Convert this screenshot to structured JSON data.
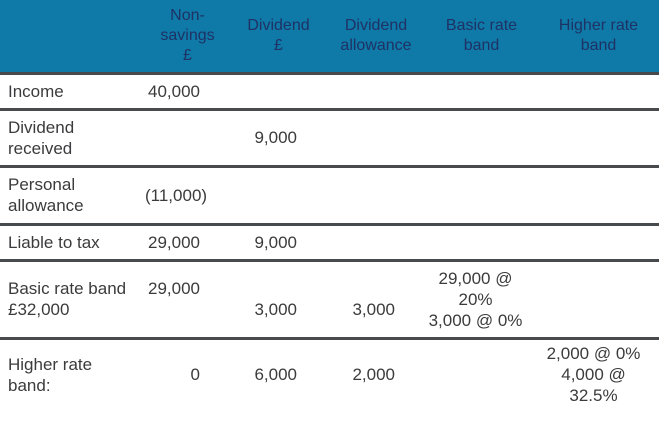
{
  "header": {
    "background_color": "#0F79A8",
    "text_color": "#1E3264",
    "columns": [
      {
        "id": "row_label",
        "lines": []
      },
      {
        "id": "non_savings",
        "lines": [
          "Non-",
          "savings",
          "£"
        ]
      },
      {
        "id": "dividend",
        "lines": [
          "Dividend",
          "£"
        ]
      },
      {
        "id": "dividend_allowance",
        "lines": [
          "Dividend",
          "allowance"
        ]
      },
      {
        "id": "basic_rate_band",
        "lines": [
          "Basic rate",
          "band"
        ]
      },
      {
        "id": "higher_rate_band",
        "lines": [
          "Higher rate",
          "band"
        ]
      }
    ]
  },
  "body": {
    "text_color": "#3B3B3D",
    "divider_color": "#474B4E",
    "rows": [
      {
        "id": "income",
        "cells": [
          [
            "Income"
          ],
          [
            "40,000"
          ],
          [],
          [],
          [],
          []
        ]
      },
      {
        "id": "dividend-received",
        "cells": [
          [
            "Dividend",
            "received"
          ],
          [],
          [
            "9,000"
          ],
          [],
          [],
          []
        ]
      },
      {
        "id": "personal-allowance",
        "cells": [
          [
            "Personal",
            "allowance"
          ],
          [
            "(11,000)"
          ],
          [],
          [],
          [],
          []
        ]
      },
      {
        "id": "liable-to-tax",
        "cells": [
          [
            "Liable to tax"
          ],
          [
            "29,000"
          ],
          [
            "9,000"
          ],
          [],
          [],
          []
        ]
      },
      {
        "id": "basic-rate-band",
        "cells": [
          [
            "Basic rate band",
            "£32,000"
          ],
          [
            "29,000",
            ""
          ],
          [
            "",
            "3,000"
          ],
          [
            "",
            "3,000"
          ],
          [
            "29,000 @",
            "20%",
            "3,000 @ 0%"
          ],
          []
        ]
      },
      {
        "id": "higher-rate-band",
        "cells": [
          [
            "Higher rate",
            "band:"
          ],
          [
            "0"
          ],
          [
            "6,000"
          ],
          [
            "2,000"
          ],
          [],
          [
            "2,000 @ 0%",
            "4,000 @",
            "32.5%"
          ]
        ]
      }
    ]
  }
}
